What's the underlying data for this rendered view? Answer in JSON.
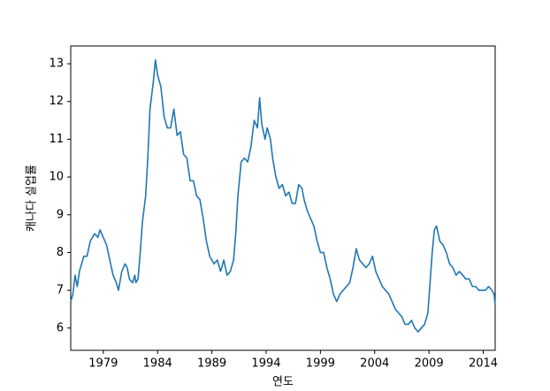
{
  "chart_data": {
    "type": "line",
    "xlabel": "연도",
    "ylabel": "캐나다 실업률",
    "x": [
      1976.0,
      1976.2,
      1976.4,
      1976.6,
      1976.8,
      1977.2,
      1977.5,
      1977.8,
      1978.2,
      1978.5,
      1978.7,
      1979.0,
      1979.3,
      1979.6,
      1979.9,
      1980.2,
      1980.4,
      1980.7,
      1981.0,
      1981.2,
      1981.4,
      1981.7,
      1981.9,
      1982.0,
      1982.2,
      1982.4,
      1982.6,
      1982.9,
      1983.1,
      1983.3,
      1983.6,
      1983.8,
      1984.0,
      1984.3,
      1984.6,
      1984.9,
      1985.2,
      1985.5,
      1985.8,
      1986.1,
      1986.4,
      1986.7,
      1987.0,
      1987.3,
      1987.6,
      1987.9,
      1988.2,
      1988.5,
      1988.8,
      1989.2,
      1989.5,
      1989.8,
      1990.1,
      1990.4,
      1990.7,
      1991.0,
      1991.2,
      1991.4,
      1991.7,
      1992.0,
      1992.3,
      1992.6,
      1992.9,
      1993.2,
      1993.4,
      1993.6,
      1993.9,
      1994.1,
      1994.4,
      1994.6,
      1994.9,
      1995.2,
      1995.5,
      1995.8,
      1996.1,
      1996.4,
      1996.7,
      1997.0,
      1997.3,
      1997.5,
      1997.8,
      1998.1,
      1998.4,
      1998.7,
      1999.0,
      1999.3,
      1999.6,
      1999.9,
      2000.2,
      2000.5,
      2000.8,
      2001.1,
      2001.4,
      2001.7,
      2002.0,
      2002.3,
      2002.6,
      2002.9,
      2003.2,
      2003.5,
      2003.8,
      2004.1,
      2004.4,
      2004.7,
      2005.0,
      2005.3,
      2005.6,
      2005.9,
      2006.2,
      2006.5,
      2006.8,
      2007.1,
      2007.4,
      2007.7,
      2008.0,
      2008.3,
      2008.6,
      2008.9,
      2009.1,
      2009.3,
      2009.5,
      2009.7,
      2010.0,
      2010.3,
      2010.6,
      2010.9,
      2011.2,
      2011.5,
      2011.8,
      2012.1,
      2012.4,
      2012.7,
      2013.0,
      2013.3,
      2013.6,
      2013.9,
      2014.2,
      2014.5,
      2014.8,
      2015.0,
      2015.1
    ],
    "series": [
      {
        "color": "#1f77b4",
        "values": [
          6.7,
          6.9,
          7.4,
          7.1,
          7.5,
          7.9,
          7.9,
          8.3,
          8.5,
          8.4,
          8.6,
          8.4,
          8.2,
          7.8,
          7.4,
          7.2,
          7.0,
          7.5,
          7.7,
          7.6,
          7.3,
          7.2,
          7.4,
          7.2,
          7.3,
          8.0,
          8.8,
          9.5,
          10.5,
          11.8,
          12.5,
          13.1,
          12.7,
          12.4,
          11.6,
          11.3,
          11.3,
          11.8,
          11.1,
          11.2,
          10.6,
          10.5,
          9.9,
          9.9,
          9.5,
          9.4,
          8.9,
          8.3,
          7.9,
          7.7,
          7.8,
          7.5,
          7.8,
          7.4,
          7.5,
          7.8,
          8.5,
          9.5,
          10.4,
          10.5,
          10.4,
          10.8,
          11.5,
          11.3,
          12.1,
          11.4,
          11.0,
          11.3,
          11.0,
          10.5,
          10.0,
          9.7,
          9.8,
          9.5,
          9.6,
          9.3,
          9.3,
          9.8,
          9.7,
          9.4,
          9.1,
          8.9,
          8.7,
          8.3,
          8.0,
          8.0,
          7.6,
          7.3,
          6.9,
          6.7,
          6.9,
          7.0,
          7.1,
          7.2,
          7.6,
          8.1,
          7.8,
          7.7,
          7.6,
          7.7,
          7.9,
          7.5,
          7.3,
          7.1,
          7.0,
          6.9,
          6.7,
          6.5,
          6.4,
          6.3,
          6.1,
          6.1,
          6.2,
          6.0,
          5.9,
          6.0,
          6.1,
          6.4,
          7.2,
          8.0,
          8.6,
          8.7,
          8.3,
          8.2,
          8.0,
          7.7,
          7.6,
          7.4,
          7.5,
          7.4,
          7.3,
          7.3,
          7.1,
          7.1,
          7.0,
          7.0,
          7.0,
          7.1,
          7.0,
          6.9,
          6.6
        ]
      }
    ],
    "xlim": [
      1976.0,
      2015.1
    ],
    "xticks": [
      1979,
      1984,
      1989,
      1994,
      1999,
      2004,
      2009,
      2014
    ],
    "ylim": [
      5.41,
      13.47
    ],
    "yticks": [
      6,
      7,
      8,
      9,
      10,
      11,
      12,
      13
    ],
    "grid": false
  }
}
